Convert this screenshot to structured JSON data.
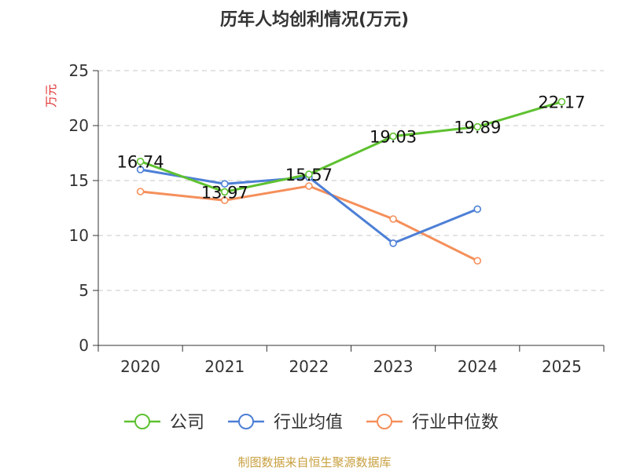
{
  "chart_data": {
    "type": "line",
    "title": "历年人均创利情况(万元)",
    "ylabel": "万元",
    "xlabel": "",
    "categories": [
      "2020",
      "2021",
      "2022",
      "2023",
      "2024",
      "2025"
    ],
    "ylim": [
      0,
      25
    ],
    "yticks": [
      0,
      5,
      10,
      15,
      20,
      25
    ],
    "grid": true,
    "legend_position": "bottom",
    "series": [
      {
        "name": "公司",
        "color": "#5ec130",
        "values": [
          16.74,
          13.97,
          15.57,
          19.03,
          19.89,
          22.17
        ],
        "labels": [
          "16.74",
          "13.97",
          "15.57",
          "19.03",
          "19.89",
          "22.17"
        ]
      },
      {
        "name": "行业均值",
        "color": "#4d7fd6",
        "values": [
          16.0,
          14.7,
          15.3,
          9.3,
          12.4,
          null
        ]
      },
      {
        "name": "行业中位数",
        "color": "#f58f5a",
        "values": [
          14.0,
          13.2,
          14.5,
          11.5,
          7.7,
          null
        ]
      }
    ]
  },
  "source": "制图数据来自恒生聚源数据库"
}
